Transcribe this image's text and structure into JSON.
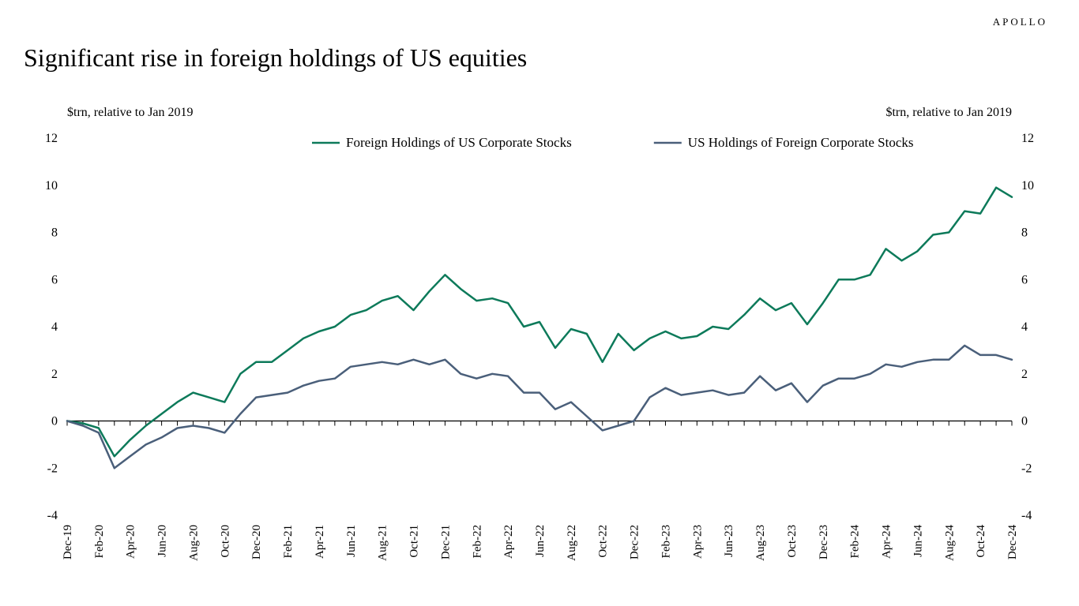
{
  "brand": "APOLLO",
  "title": "Significant rise in foreign holdings of US equities",
  "chart": {
    "type": "line",
    "y_axis_label_left": "$trn, relative to Jan 2019",
    "y_axis_label_right": "$trn, relative to Jan 2019",
    "ylim": [
      -4,
      12
    ],
    "ytick_step": 2,
    "yticks": [
      -4,
      -2,
      0,
      2,
      4,
      6,
      8,
      10,
      12
    ],
    "background_color": "#ffffff",
    "axis_color": "#000000",
    "tick_color": "#000000",
    "line_width": 2.5,
    "x_labels": [
      "Dec-19",
      "Feb-20",
      "Apr-20",
      "Jun-20",
      "Aug-20",
      "Oct-20",
      "Dec-20",
      "Feb-21",
      "Apr-21",
      "Jun-21",
      "Aug-21",
      "Oct-21",
      "Dec-21",
      "Feb-22",
      "Apr-22",
      "Jun-22",
      "Aug-22",
      "Oct-22",
      "Dec-22",
      "Feb-23",
      "Apr-23",
      "Jun-23",
      "Aug-23",
      "Oct-23",
      "Dec-23",
      "Feb-24",
      "Apr-24",
      "Jun-24",
      "Aug-24",
      "Oct-24",
      "Dec-24"
    ],
    "n_points": 61,
    "legend": {
      "items": [
        {
          "label": "Foreign Holdings of US Corporate Stocks",
          "color": "#0d7a5a"
        },
        {
          "label": "US Holdings of Foreign Corporate Stocks",
          "color": "#4a5f7a"
        }
      ],
      "line_length": 35,
      "x_offset": 310,
      "gap": 70
    },
    "series": [
      {
        "name": "Foreign Holdings of US Corporate Stocks",
        "color": "#0d7a5a",
        "values": [
          0.0,
          -0.1,
          -0.3,
          -1.5,
          -0.8,
          -0.2,
          0.3,
          0.8,
          1.2,
          1.0,
          0.8,
          2.0,
          2.5,
          2.5,
          3.0,
          3.5,
          3.8,
          4.0,
          4.5,
          4.7,
          5.1,
          5.3,
          4.7,
          5.5,
          6.2,
          5.6,
          5.1,
          5.2,
          5.0,
          4.0,
          4.2,
          3.1,
          3.9,
          3.7,
          2.5,
          3.7,
          3.0,
          3.5,
          3.8,
          3.5,
          3.6,
          4.0,
          3.9,
          4.5,
          5.2,
          4.7,
          5.0,
          4.1,
          5.0,
          6.0,
          6.0,
          6.2,
          7.3,
          6.8,
          7.2,
          7.9,
          8.0,
          8.9,
          8.8,
          9.9,
          9.5
        ]
      },
      {
        "name": "US Holdings of Foreign Corporate Stocks",
        "color": "#4a5f7a",
        "values": [
          0.0,
          -0.2,
          -0.5,
          -2.0,
          -1.5,
          -1.0,
          -0.7,
          -0.3,
          -0.2,
          -0.3,
          -0.5,
          0.3,
          1.0,
          1.1,
          1.2,
          1.5,
          1.7,
          1.8,
          2.3,
          2.4,
          2.5,
          2.4,
          2.6,
          2.4,
          2.6,
          2.0,
          1.8,
          2.0,
          1.9,
          1.2,
          1.2,
          0.5,
          0.8,
          0.2,
          -0.4,
          -0.2,
          0.0,
          1.0,
          1.4,
          1.1,
          1.2,
          1.3,
          1.1,
          1.2,
          1.9,
          1.3,
          1.6,
          0.8,
          1.5,
          1.8,
          1.8,
          2.0,
          2.4,
          2.3,
          2.5,
          2.6,
          2.6,
          3.2,
          2.8,
          2.8,
          2.6
        ]
      }
    ],
    "title_fontsize": 32,
    "axis_label_fontsize": 16,
    "tick_fontsize": 16,
    "x_tick_fontsize": 15,
    "legend_fontsize": 17
  }
}
